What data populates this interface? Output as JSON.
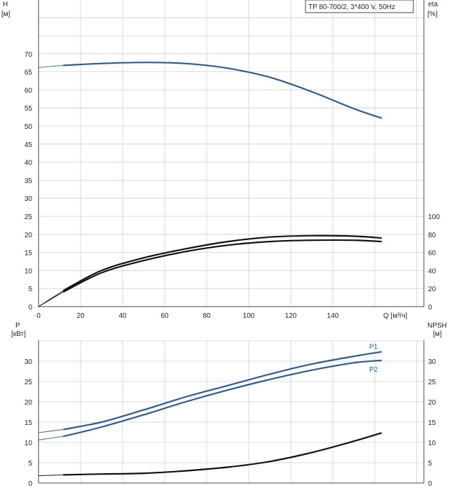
{
  "chart_data": [
    {
      "type": "line",
      "panel": "top",
      "title_box": "TP 80-700/2, 3*400 V, 50Hz",
      "ylabel_left": "H",
      "ylabel_left_unit": "[м]",
      "ylabel_right": "eta",
      "ylabel_right_unit": "[%]",
      "xlabel": "Q [м³/ч]",
      "xlim": [
        0,
        175
      ],
      "ylim_left": [
        0,
        80
      ],
      "ylim_right": [
        0,
        100
      ],
      "x_ticks": [
        0,
        20,
        40,
        60,
        80,
        100,
        120,
        140
      ],
      "y_ticks_left": [
        0,
        5,
        10,
        15,
        20,
        25,
        30,
        35,
        40,
        45,
        50,
        55,
        60,
        65,
        70
      ],
      "y_ticks_right": [
        0,
        20,
        40,
        60,
        80,
        100
      ],
      "grid": true,
      "series": [
        {
          "axis": "left",
          "color": "#2a5d95",
          "x": [
            0,
            12,
            30,
            50,
            70,
            90,
            110,
            130,
            150,
            163
          ],
          "y": [
            66.2,
            66.8,
            67.3,
            67.6,
            67.3,
            66.0,
            63.5,
            59.5,
            54.8,
            52.2
          ]
        },
        {
          "axis": "right",
          "color": "#111111",
          "x": [
            0,
            12,
            30,
            50,
            70,
            90,
            110,
            130,
            150,
            163
          ],
          "y": [
            0,
            18,
            40,
            54,
            64,
            72,
            77,
            78.5,
            78,
            76
          ]
        },
        {
          "axis": "right",
          "color": "#111111",
          "x": [
            0,
            12,
            30,
            50,
            70,
            90,
            110,
            130,
            150,
            163
          ],
          "y": [
            0,
            16.5,
            37.5,
            51,
            61,
            68,
            72,
            73.5,
            73.5,
            72
          ]
        }
      ]
    },
    {
      "type": "line",
      "panel": "bottom",
      "ylabel_left": "P",
      "ylabel_left_unit": "[кВт]",
      "ylabel_right": "NPSH",
      "ylabel_right_unit": "[м]",
      "xlim": [
        0,
        175
      ],
      "ylim_left": [
        0,
        35
      ],
      "ylim_right": [
        0,
        35
      ],
      "y_ticks_left": [
        0,
        5,
        10,
        15,
        20,
        25,
        30
      ],
      "y_ticks_right": [
        0,
        5,
        10,
        15,
        20,
        25,
        30
      ],
      "grid": true,
      "series": [
        {
          "name": "P1",
          "axis": "left",
          "color": "#2a5d95",
          "x": [
            0,
            12,
            30,
            50,
            70,
            90,
            110,
            130,
            150,
            163
          ],
          "y": [
            12.4,
            13.2,
            15.0,
            18.0,
            21.2,
            24.0,
            26.8,
            29.3,
            31.2,
            32.3
          ]
        },
        {
          "name": "P2",
          "axis": "left",
          "color": "#2a5d95",
          "x": [
            0,
            12,
            30,
            50,
            70,
            90,
            110,
            130,
            150,
            163
          ],
          "y": [
            10.6,
            11.5,
            13.8,
            16.8,
            20.0,
            22.9,
            25.5,
            27.8,
            29.6,
            30.2
          ]
        },
        {
          "axis": "right",
          "color": "#111111",
          "x": [
            0,
            12,
            30,
            50,
            70,
            90,
            110,
            130,
            150,
            163
          ],
          "y": [
            1.8,
            2.0,
            2.2,
            2.4,
            3.0,
            3.9,
            5.3,
            7.5,
            10.3,
            12.3
          ]
        }
      ]
    }
  ]
}
